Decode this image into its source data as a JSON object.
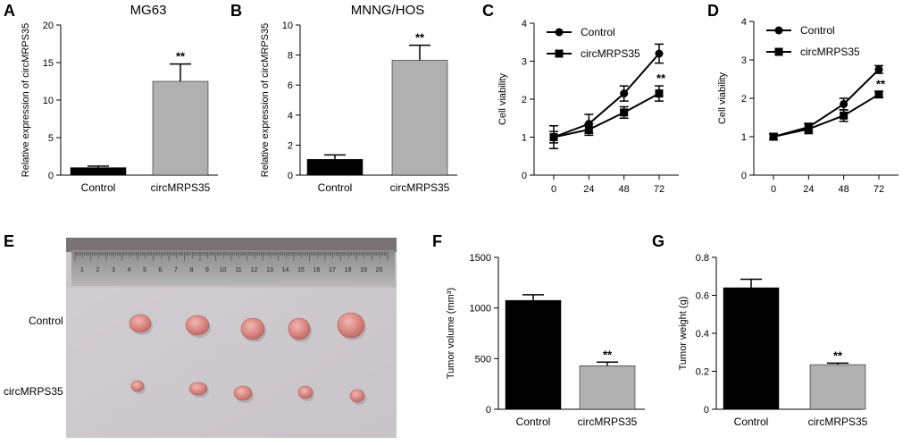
{
  "chart_data": [
    {
      "panel": "A",
      "type": "bar",
      "title": "MG63",
      "ylabel": "Relative expression of circMRPS35",
      "xlabel": "",
      "categories": [
        "Control",
        "circMRPS35"
      ],
      "values": [
        1.0,
        12.5
      ],
      "errors": [
        0.2,
        2.3
      ],
      "colors": [
        "#000000",
        "#b0b0b0"
      ],
      "annotations": [
        "",
        "**"
      ],
      "ylim": [
        0,
        20
      ],
      "yticks": [
        "0",
        "5",
        "10",
        "15",
        "20"
      ]
    },
    {
      "panel": "B",
      "type": "bar",
      "title": "MNNG/HOS",
      "ylabel": "Relative expression of circMRPS35",
      "xlabel": "",
      "categories": [
        "Control",
        "circMRPS35"
      ],
      "values": [
        1.05,
        7.65
      ],
      "errors": [
        0.3,
        1.0
      ],
      "colors": [
        "#000000",
        "#b0b0b0"
      ],
      "annotations": [
        "",
        "**"
      ],
      "ylim": [
        0,
        10
      ],
      "yticks": [
        "0",
        "2",
        "4",
        "6",
        "8",
        "10"
      ]
    },
    {
      "panel": "C",
      "type": "line",
      "title": "",
      "ylabel": "Cell viability",
      "xlabel": "",
      "x": [
        0,
        24,
        48,
        72
      ],
      "xticks": [
        "0",
        "24",
        "48",
        "72"
      ],
      "series": [
        {
          "name": "Control",
          "marker": "circle",
          "values": [
            1.0,
            1.35,
            2.15,
            3.2
          ],
          "errors": [
            0.3,
            0.25,
            0.2,
            0.25
          ]
        },
        {
          "name": "circMRPS35",
          "marker": "square",
          "values": [
            1.0,
            1.2,
            1.65,
            2.15
          ],
          "errors": [
            0.15,
            0.15,
            0.15,
            0.2
          ]
        }
      ],
      "annotations": [
        {
          "x": 72,
          "text": "**"
        }
      ],
      "ylim": [
        0,
        4
      ],
      "yticks": [
        "0",
        "1",
        "2",
        "3",
        "4"
      ],
      "legend": "top-left"
    },
    {
      "panel": "D",
      "type": "line",
      "title": "",
      "ylabel": "Cell viability",
      "xlabel": "",
      "x": [
        0,
        24,
        48,
        72
      ],
      "xticks": [
        "0",
        "24",
        "48",
        "72"
      ],
      "series": [
        {
          "name": "Control",
          "marker": "circle",
          "values": [
            1.0,
            1.25,
            1.85,
            2.75
          ],
          "errors": [
            0.08,
            0.1,
            0.15,
            0.1
          ]
        },
        {
          "name": "circMRPS35",
          "marker": "square",
          "values": [
            1.0,
            1.2,
            1.55,
            2.1
          ],
          "errors": [
            0.08,
            0.12,
            0.15,
            0.08
          ]
        }
      ],
      "annotations": [
        {
          "x": 72,
          "text": "**"
        }
      ],
      "ylim": [
        0,
        4
      ],
      "yticks": [
        "0",
        "1",
        "2",
        "3",
        "4"
      ],
      "legend": "top-left"
    },
    {
      "panel": "F",
      "type": "bar",
      "title": "",
      "ylabel": "Tumor volume (mm³)",
      "xlabel": "",
      "categories": [
        "Control",
        "circMRPS35"
      ],
      "values": [
        1075,
        430
      ],
      "errors": [
        55,
        35
      ],
      "colors": [
        "#000000",
        "#b0b0b0"
      ],
      "annotations": [
        "",
        "**"
      ],
      "ylim": [
        0,
        1500
      ],
      "yticks": [
        "0",
        "500",
        "1000",
        "1500"
      ]
    },
    {
      "panel": "G",
      "type": "bar",
      "title": "",
      "ylabel": "Tumor weight (g)",
      "xlabel": "",
      "categories": [
        "Control",
        "circMRPS35"
      ],
      "values": [
        0.64,
        0.235
      ],
      "errors": [
        0.045,
        0.008
      ],
      "colors": [
        "#000000",
        "#b0b0b0"
      ],
      "annotations": [
        "",
        "**"
      ],
      "ylim": [
        0,
        0.8
      ],
      "yticks": [
        "0",
        "0.2",
        "0.4",
        "0.6",
        "0.8"
      ]
    }
  ],
  "photo": {
    "panel": "E",
    "row_labels": [
      "Control",
      "circMRPS35"
    ],
    "ruler_numbers": [
      "1",
      "2",
      "3",
      "4",
      "5",
      "6",
      "7",
      "8",
      "9",
      "10",
      "11",
      "12",
      "13",
      "14",
      "15",
      "16",
      "17",
      "18",
      "19",
      "20"
    ],
    "tumors_per_row": 5
  }
}
